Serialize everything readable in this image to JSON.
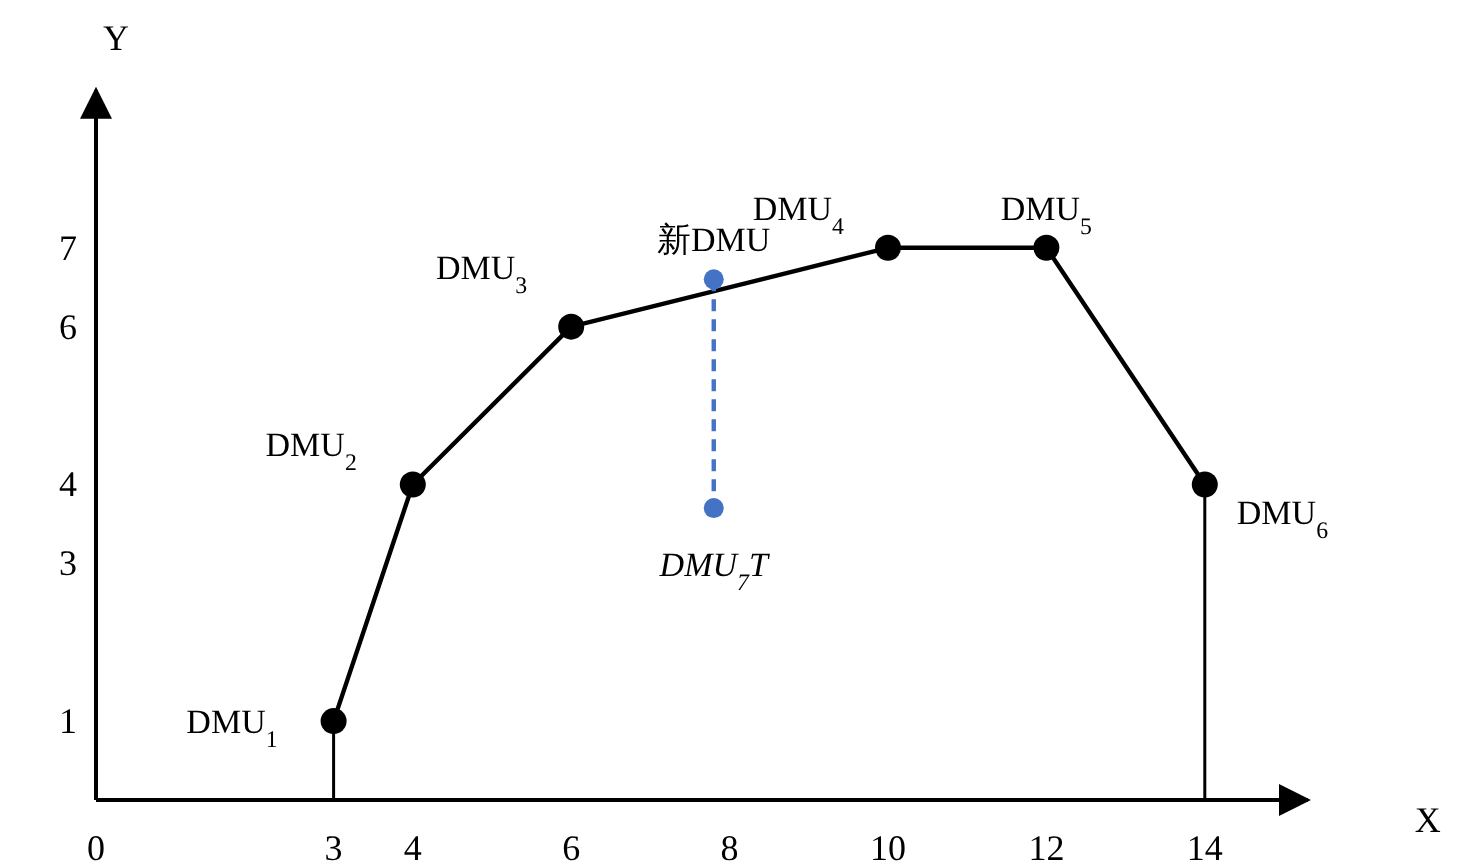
{
  "chart_data": {
    "type": "line",
    "xlabel": "X",
    "ylabel": "Y",
    "xlim": [
      0,
      15.3
    ],
    "ylim": [
      0,
      9
    ],
    "xticks": [
      0,
      3,
      4,
      6,
      8,
      10,
      12,
      14
    ],
    "yticks": [
      1,
      3,
      4,
      6,
      7
    ],
    "grid": false,
    "series": [
      {
        "color": "#000000",
        "marker": "circle",
        "line_style": "solid",
        "x": [
          3,
          4,
          6,
          10,
          12,
          14
        ],
        "values": [
          1,
          4,
          6,
          7,
          7,
          4
        ]
      },
      {
        "color": "#000000",
        "marker": "none",
        "line_style": "solid",
        "x": [
          3,
          3
        ],
        "values": [
          0,
          1
        ]
      },
      {
        "color": "#000000",
        "marker": "none",
        "line_style": "solid",
        "x": [
          14,
          14
        ],
        "values": [
          4,
          0
        ]
      },
      {
        "color": "#4472c4",
        "marker": "circle",
        "line_style": "dashed",
        "x": [
          7.8,
          7.8
        ],
        "values": [
          6.6,
          3.7
        ]
      }
    ],
    "annotations": [
      {
        "text": "DMU$_{1}$",
        "x": 3,
        "y": 1
      },
      {
        "text": "DMU$_{2}$",
        "x": 4,
        "y": 4
      },
      {
        "text": "DMU$_{3}$",
        "x": 6,
        "y": 6
      },
      {
        "text": "新DMU",
        "x": 7.8,
        "y": 6.6
      },
      {
        "text": "DMU$_{4}$",
        "x": 10,
        "y": 7
      },
      {
        "text": "DMU$_{5}$",
        "x": 12,
        "y": 7
      },
      {
        "text": "DMU$_{6}$",
        "x": 14,
        "y": 4
      },
      {
        "text": "DMU$_{7}$T",
        "x": 7.8,
        "y": 3.7
      }
    ]
  }
}
